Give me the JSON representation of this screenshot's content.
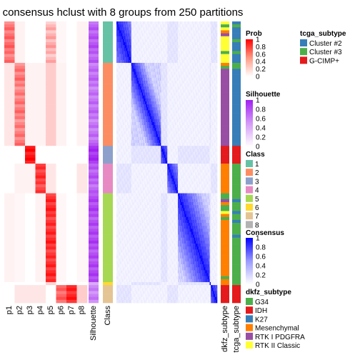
{
  "chart_data": {
    "type": "heatmap",
    "title": "consensus hclust with 8 groups from 250 partitions",
    "columns": {
      "membership": [
        "p1",
        "p2",
        "p3",
        "p4",
        "p5",
        "p6",
        "p7",
        "p8"
      ],
      "silhouette": "Silhouette",
      "class": "Class",
      "annotations": [
        "dkfz_subtype",
        "tcga_subtype"
      ]
    },
    "groups": [
      {
        "class": 1,
        "n": 14,
        "p": [
          0.55,
          0.05,
          0,
          0,
          0.3,
          0.03,
          0,
          0.05
        ],
        "sil": 0.72,
        "dkfz": [
          "RTK II Classic",
          "G34",
          "RTK II Classic",
          "Mesenchymal",
          "RTK I PDGFRA",
          "RTK II Classic",
          "RTK II Classic",
          "RTK II Classic",
          "RTK II Classic",
          "RTK II Classic",
          "G34",
          "RTK II Classic",
          "RTK II Classic",
          "RTK II Classic"
        ],
        "tcga": [
          "Cluster #2",
          "Cluster #3",
          "Cluster #2",
          "Cluster #2",
          "Cluster #2",
          "Cluster #2",
          "Cluster #3",
          "Cluster #2",
          "Cluster #2",
          "Cluster #2",
          "Cluster #3",
          "Cluster #2",
          "Cluster #2",
          "Cluster #2"
        ]
      },
      {
        "class": 2,
        "n": 28,
        "p": [
          0.1,
          0.5,
          0.05,
          0.05,
          0.2,
          0.05,
          0,
          0.05
        ],
        "sil": 0.62,
        "dkfz": [
          "Mesenchymal",
          "G34",
          "RTK I PDGFRA",
          "RTK I PDGFRA",
          "RTK I PDGFRA",
          "RTK I PDGFRA",
          "RTK I PDGFRA",
          "RTK I PDGFRA",
          "RTK I PDGFRA",
          "RTK I PDGFRA",
          "RTK I PDGFRA",
          "RTK I PDGFRA",
          "RTK I PDGFRA",
          "RTK I PDGFRA",
          "RTK I PDGFRA",
          "RTK I PDGFRA",
          "RTK I PDGFRA",
          "RTK I PDGFRA",
          "RTK I PDGFRA",
          "RTK I PDGFRA",
          "RTK I PDGFRA",
          "RTK I PDGFRA",
          "RTK I PDGFRA",
          "RTK I PDGFRA",
          "RTK I PDGFRA",
          "RTK I PDGFRA",
          "RTK I PDGFRA",
          "RTK I PDGFRA"
        ],
        "tcga": [
          "Cluster #3",
          "Cluster #3",
          "Cluster #2",
          "Cluster #2",
          "Cluster #2",
          "Cluster #2",
          "Cluster #2",
          "Cluster #2",
          "Cluster #2",
          "Cluster #2",
          "Cluster #2",
          "Cluster #2",
          "Cluster #2",
          "Cluster #2",
          "Cluster #2",
          "Cluster #2",
          "Cluster #2",
          "Cluster #2",
          "Cluster #2",
          "Cluster #2",
          "Cluster #2",
          "Cluster #2",
          "Cluster #2",
          "Cluster #2",
          "Cluster #2",
          "Cluster #2",
          "Cluster #2",
          "Cluster #2"
        ]
      },
      {
        "class": 3,
        "n": 6,
        "p": [
          0,
          0,
          0.95,
          0,
          0,
          0,
          0,
          0
        ],
        "sil": 0.95,
        "dkfz": [
          "IDH",
          "IDH",
          "IDH",
          "IDH",
          "IDH",
          "IDH"
        ],
        "tcga": [
          "G-CIMP+",
          "G-CIMP+",
          "G-CIMP+",
          "G-CIMP+",
          "G-CIMP+",
          "G-CIMP+"
        ]
      },
      {
        "class": 4,
        "n": 10,
        "p": [
          0,
          0.05,
          0.05,
          0.75,
          0.1,
          0,
          0,
          0.1
        ],
        "sil": 0.7,
        "dkfz": [
          "Mesenchymal",
          "Mesenchymal",
          "Mesenchymal",
          "Mesenchymal",
          "Mesenchymal",
          "Mesenchymal",
          "Mesenchymal",
          "Mesenchymal",
          "Mesenchymal",
          "Mesenchymal"
        ],
        "tcga": [
          "Cluster #3",
          "Cluster #3",
          "Cluster #3",
          "Cluster #3",
          "Cluster #3",
          "Cluster #3",
          "Cluster #3",
          "Cluster #3",
          "Cluster #3",
          "Cluster #3"
        ]
      },
      {
        "class": 5,
        "n": 30,
        "p": [
          0.05,
          0.03,
          0,
          0.05,
          0.8,
          0.03,
          0,
          0.03
        ],
        "sil": 0.8,
        "dkfz": [
          "G34",
          "G34",
          "RTK I PDGFRA",
          "Mesenchymal",
          "G34",
          "G34",
          "RTK II Classic",
          "Mesenchymal",
          "G34",
          "Mesenchymal",
          "Mesenchymal",
          "Mesenchymal",
          "Mesenchymal",
          "Mesenchymal",
          "Mesenchymal",
          "Mesenchymal",
          "Mesenchymal",
          "Mesenchymal",
          "Mesenchymal",
          "Mesenchymal",
          "Mesenchymal",
          "Mesenchymal",
          "Mesenchymal",
          "Mesenchymal",
          "Mesenchymal",
          "Mesenchymal",
          "Mesenchymal",
          "Mesenchymal",
          "G34",
          "Mesenchymal"
        ],
        "tcga": [
          "Cluster #3",
          "Cluster #3",
          "Cluster #2",
          "Cluster #3",
          "Cluster #3",
          "Cluster #3",
          "Cluster #2",
          "Cluster #3",
          "Cluster #3",
          "Cluster #2",
          "Cluster #3",
          "Cluster #3",
          "Cluster #3",
          "Cluster #3",
          "Cluster #2",
          "Cluster #3",
          "Cluster #3",
          "Cluster #3",
          "Cluster #3",
          "Cluster #3",
          "Cluster #3",
          "Cluster #3",
          "Cluster #3",
          "Cluster #3",
          "Cluster #3",
          "Cluster #3",
          "Cluster #3",
          "Cluster #3",
          "Cluster #3",
          "Cluster #3"
        ]
      },
      {
        "class": 6,
        "n": 1,
        "p": [
          0,
          0,
          0,
          0,
          0.3,
          0,
          0,
          0
        ],
        "sil": 0.5,
        "dkfz": [
          "Mesenchymal"
        ],
        "tcga": [
          "Cluster #3"
        ]
      },
      {
        "class": 7,
        "n": 6,
        "p": [
          0,
          0.1,
          0.1,
          0.1,
          0,
          0.6,
          0.85,
          0.2
        ],
        "sil": 0.55,
        "dkfz": [
          "IDH",
          "IDH",
          "IDH",
          "IDH",
          "IDH",
          "IDH"
        ],
        "tcga": [
          "G-CIMP+",
          "G-CIMP+",
          "G-CIMP+",
          "G-CIMP+",
          "G-CIMP+",
          "G-CIMP+"
        ]
      }
    ]
  },
  "legends": {
    "prob": {
      "title": "Prob",
      "ticks": [
        "1",
        "0.8",
        "0.6",
        "0.4",
        "0.2",
        "0"
      ],
      "colors": [
        "#ff0000",
        "#ffffff"
      ]
    },
    "silhouette": {
      "title": "Silhouette",
      "ticks": [
        "1",
        "0.8",
        "0.6",
        "0.4",
        "0.2",
        "0"
      ],
      "colors": [
        "#a020f0",
        "#ffffff"
      ]
    },
    "class": {
      "title": "Class",
      "items": [
        {
          "label": "1",
          "color": "#66C2A5"
        },
        {
          "label": "2",
          "color": "#FC8D62"
        },
        {
          "label": "3",
          "color": "#8DA0CB"
        },
        {
          "label": "4",
          "color": "#E78AC3"
        },
        {
          "label": "5",
          "color": "#A6D854"
        },
        {
          "label": "6",
          "color": "#FFD92F"
        },
        {
          "label": "7",
          "color": "#E5C494"
        },
        {
          "label": "8",
          "color": "#B3B3B3"
        }
      ]
    },
    "consensus": {
      "title": "Consensus",
      "ticks": [
        "1",
        "0.8",
        "0.6",
        "0.4",
        "0.2",
        "0"
      ],
      "colors": [
        "#0000ff",
        "#ffffff"
      ]
    },
    "dkfz_subtype": {
      "title": "dkfz_subtype",
      "items": [
        {
          "label": "G34",
          "color": "#4DAF4A"
        },
        {
          "label": "IDH",
          "color": "#E41A1C"
        },
        {
          "label": "K27",
          "color": "#377EB8"
        },
        {
          "label": "Mesenchymal",
          "color": "#FF7F00"
        },
        {
          "label": "RTK I PDGFRA",
          "color": "#984EA3"
        },
        {
          "label": "RTK II Classic",
          "color": "#FFFF33"
        }
      ]
    },
    "tcga_subtype": {
      "title": "tcga_subtype",
      "items": [
        {
          "label": "Cluster #2",
          "color": "#377EB8"
        },
        {
          "label": "Cluster #3",
          "color": "#4DAF4A"
        },
        {
          "label": "G-CIMP+",
          "color": "#E41A1C"
        }
      ]
    }
  }
}
